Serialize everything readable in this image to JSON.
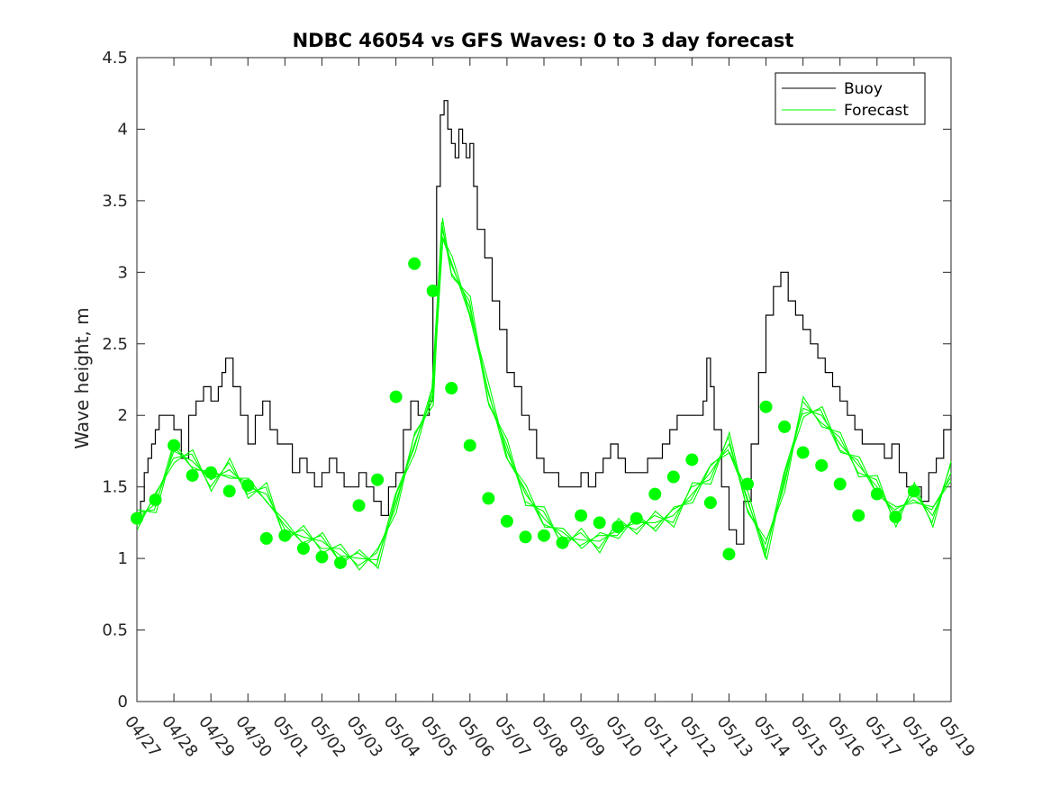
{
  "chart_data": {
    "type": "line",
    "title": "NDBC 46054 vs GFS Waves: 0 to 3 day forecast",
    "xlabel": "",
    "ylabel": "Wave height, m",
    "ylim": [
      0,
      4.5
    ],
    "yticks": [
      "0",
      "0.5",
      "1",
      "1.5",
      "2",
      "2.5",
      "3",
      "3.5",
      "4",
      "4.5"
    ],
    "xlim": [
      0,
      22
    ],
    "xticks": [
      "04/27",
      "04/28",
      "04/29",
      "04/30",
      "05/01",
      "05/02",
      "05/03",
      "05/04",
      "05/05",
      "05/06",
      "05/07",
      "05/08",
      "05/09",
      "05/10",
      "05/11",
      "05/12",
      "05/13",
      "05/14",
      "05/15",
      "05/16",
      "05/17",
      "05/18",
      "05/19"
    ],
    "x_unit_note": "",
    "legend": {
      "position": "top-right",
      "entries": [
        "Buoy",
        "Forecast"
      ]
    },
    "colors": {
      "buoy": "#000000",
      "forecast": "#00ff00"
    },
    "series": [
      {
        "name": "Buoy",
        "style": "line",
        "x": [
          0,
          0.1,
          0.2,
          0.3,
          0.4,
          0.5,
          0.6,
          0.8,
          1.0,
          1.2,
          1.4,
          1.6,
          1.8,
          2.0,
          2.2,
          2.3,
          2.4,
          2.6,
          2.8,
          3.0,
          3.2,
          3.4,
          3.6,
          3.8,
          4.0,
          4.2,
          4.4,
          4.6,
          4.8,
          5.0,
          5.2,
          5.4,
          5.6,
          5.8,
          6.0,
          6.2,
          6.4,
          6.6,
          6.8,
          7.0,
          7.2,
          7.4,
          7.6,
          7.8,
          7.9,
          8.0,
          8.1,
          8.2,
          8.3,
          8.4,
          8.5,
          8.6,
          8.7,
          8.8,
          8.9,
          9.0,
          9.1,
          9.2,
          9.4,
          9.6,
          9.8,
          10.0,
          10.2,
          10.4,
          10.6,
          10.8,
          11.0,
          11.2,
          11.4,
          11.6,
          11.8,
          12.0,
          12.2,
          12.4,
          12.6,
          12.8,
          13.0,
          13.2,
          13.4,
          13.6,
          13.8,
          14.0,
          14.2,
          14.4,
          14.6,
          14.8,
          15.0,
          15.2,
          15.3,
          15.4,
          15.5,
          15.6,
          15.8,
          16.0,
          16.2,
          16.4,
          16.6,
          16.8,
          17.0,
          17.2,
          17.4,
          17.6,
          17.8,
          18.0,
          18.2,
          18.4,
          18.6,
          18.8,
          19.0,
          19.2,
          19.4,
          19.6,
          19.8,
          20.0,
          20.2,
          20.4,
          20.6,
          20.8,
          21.0,
          21.2,
          21.4,
          21.6,
          21.8,
          22.0
        ],
        "y": [
          1.3,
          1.4,
          1.6,
          1.7,
          1.8,
          1.9,
          2.0,
          2.0,
          1.9,
          1.7,
          2.0,
          2.1,
          2.2,
          2.1,
          2.2,
          2.3,
          2.4,
          2.2,
          2.0,
          1.8,
          2.0,
          2.1,
          1.9,
          1.8,
          1.8,
          1.6,
          1.7,
          1.6,
          1.5,
          1.6,
          1.7,
          1.6,
          1.5,
          1.5,
          1.6,
          1.5,
          1.4,
          1.3,
          1.5,
          1.6,
          1.9,
          2.1,
          2.0,
          2.0,
          2.1,
          2.9,
          3.6,
          4.1,
          4.2,
          4.0,
          3.9,
          3.8,
          4.0,
          3.9,
          3.8,
          3.9,
          3.6,
          3.3,
          3.1,
          2.8,
          2.6,
          2.3,
          2.2,
          2.0,
          1.9,
          1.7,
          1.6,
          1.6,
          1.5,
          1.5,
          1.5,
          1.6,
          1.5,
          1.6,
          1.7,
          1.8,
          1.7,
          1.6,
          1.6,
          1.6,
          1.7,
          1.7,
          1.8,
          1.9,
          2.0,
          2.0,
          2.0,
          2.0,
          2.1,
          2.4,
          2.2,
          1.9,
          1.5,
          1.2,
          1.1,
          1.4,
          1.8,
          2.3,
          2.7,
          2.9,
          3.0,
          2.8,
          2.7,
          2.6,
          2.5,
          2.4,
          2.3,
          2.2,
          2.1,
          2.0,
          1.9,
          1.8,
          1.8,
          1.8,
          1.7,
          1.8,
          1.6,
          1.5,
          1.5,
          1.4,
          1.6,
          1.7,
          1.9,
          2.0
        ]
      },
      {
        "name": "Forecast",
        "style": "line",
        "x": [
          0,
          0.5,
          1.0,
          1.5,
          2.0,
          2.5,
          3.0,
          3.5,
          4.0,
          4.5,
          5.0,
          5.5,
          6.0,
          6.5,
          7.0,
          7.5,
          8.0,
          8.25,
          8.5,
          9.0,
          9.5,
          10.0,
          10.5,
          11.0,
          11.5,
          12.0,
          12.5,
          13.0,
          13.5,
          14.0,
          14.5,
          15.0,
          15.5,
          16.0,
          16.5,
          17.0,
          17.5,
          18.0,
          18.5,
          19.0,
          19.5,
          20.0,
          20.5,
          21.0,
          21.5,
          22.0
        ],
        "y": [
          1.28,
          1.38,
          1.75,
          1.68,
          1.55,
          1.62,
          1.5,
          1.45,
          1.2,
          1.15,
          1.12,
          1.02,
          1.0,
          0.99,
          1.4,
          1.8,
          2.15,
          3.3,
          3.05,
          2.75,
          2.15,
          1.75,
          1.45,
          1.28,
          1.15,
          1.13,
          1.12,
          1.2,
          1.25,
          1.25,
          1.3,
          1.45,
          1.6,
          1.8,
          1.4,
          1.05,
          1.55,
          2.05,
          2.0,
          1.8,
          1.65,
          1.5,
          1.3,
          1.45,
          1.3,
          1.6
        ]
      },
      {
        "name": "",
        "style": "markers",
        "x": [
          0,
          0.5,
          1.0,
          1.5,
          2.0,
          2.5,
          3.0,
          3.5,
          4.0,
          4.5,
          5.0,
          5.5,
          6.0,
          6.5,
          7.0,
          7.5,
          8.0,
          8.5,
          9.0,
          9.5,
          10.0,
          10.5,
          11.0,
          11.5,
          12.0,
          12.5,
          13.0,
          13.5,
          14.0,
          14.5,
          15.0,
          15.5,
          16.0,
          16.5,
          17.0,
          17.5,
          18.0,
          18.5,
          19.0,
          19.5,
          20.0,
          20.5,
          21.0
        ],
        "y": [
          1.28,
          1.41,
          1.79,
          1.58,
          1.6,
          1.47,
          1.51,
          1.14,
          1.16,
          1.07,
          1.01,
          0.97,
          1.37,
          1.55,
          2.13,
          3.06,
          2.87,
          2.19,
          1.79,
          1.42,
          1.26,
          1.15,
          1.16,
          1.11,
          1.3,
          1.25,
          1.22,
          1.28,
          1.45,
          1.57,
          1.69,
          1.39,
          1.03,
          1.52,
          2.06,
          1.92,
          1.74,
          1.65,
          1.52,
          1.3,
          1.45,
          1.29,
          1.47
        ]
      }
    ]
  }
}
